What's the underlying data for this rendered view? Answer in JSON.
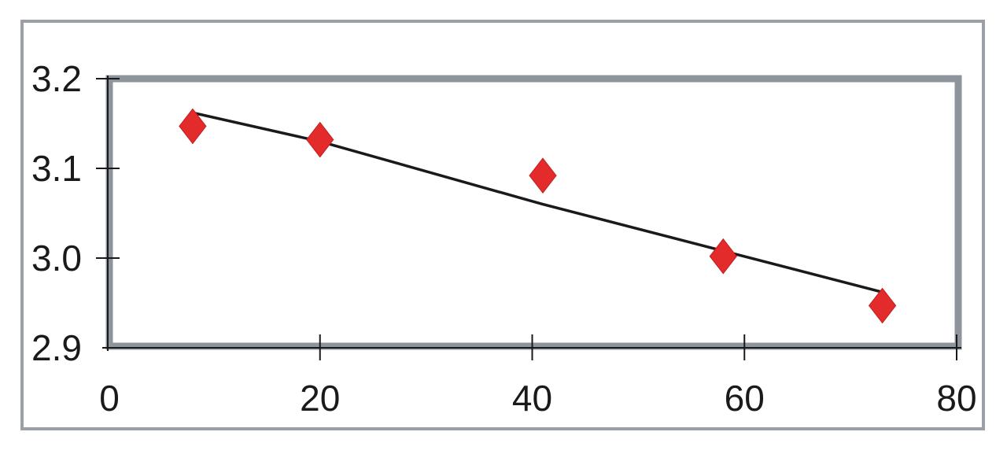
{
  "chart_data": {
    "type": "scatter",
    "title": "",
    "xlabel": "",
    "ylabel": "",
    "xlim": [
      0,
      80
    ],
    "ylim": [
      2.9,
      3.2
    ],
    "xticks": [
      "0",
      "20",
      "40",
      "60",
      "80"
    ],
    "yticks": [
      "2.9",
      "3.0",
      "3.1",
      "3.2"
    ],
    "grid": false,
    "legend": "none",
    "series": [
      {
        "kind": "scatter",
        "marker": "diamond",
        "color": "#e32b2b",
        "points": [
          {
            "x": 8,
            "y": 3.147
          },
          {
            "x": 20,
            "y": 3.132
          },
          {
            "x": 41,
            "y": 3.092
          },
          {
            "x": 58,
            "y": 3.002
          },
          {
            "x": 73,
            "y": 2.947
          }
        ]
      },
      {
        "kind": "line",
        "color": "#1a1a1a",
        "points": [
          {
            "x": 8,
            "y": 3.162
          },
          {
            "x": 20,
            "y": 3.13
          },
          {
            "x": 41,
            "y": 3.06
          },
          {
            "x": 58,
            "y": 3.008
          },
          {
            "x": 73,
            "y": 2.962
          }
        ]
      }
    ],
    "colors": {
      "plot_border": "#8e949b",
      "outer_frame": "#9aa0a6",
      "marker": "#e32b2b",
      "line": "#1a1a1a"
    }
  }
}
